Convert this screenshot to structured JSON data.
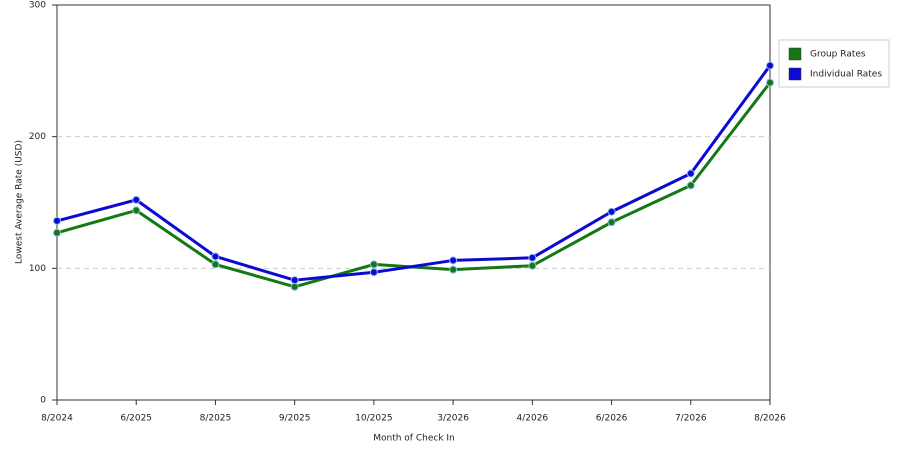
{
  "chart_data": {
    "type": "line",
    "x_label": "Month of Check In",
    "y_label": "Lowest Average Rate (USD)",
    "categories": [
      "8/2024",
      "6/2025",
      "8/2025",
      "9/2025",
      "10/2025",
      "3/2026",
      "4/2026",
      "6/2026",
      "7/2026",
      "8/2026"
    ],
    "series": [
      {
        "name": "Group Rates",
        "color": "#147814",
        "values": [
          127,
          144,
          103,
          86,
          103,
          99,
          102,
          135,
          163,
          241
        ]
      },
      {
        "name": "Individual Rates",
        "color": "#0a0ad2",
        "values": [
          136,
          152,
          109,
          91,
          97,
          106,
          108,
          143,
          172,
          254
        ]
      }
    ],
    "ylim": [
      0,
      300
    ],
    "yticks": [
      0,
      100,
      200,
      300
    ],
    "grid": true,
    "legend": "right"
  }
}
